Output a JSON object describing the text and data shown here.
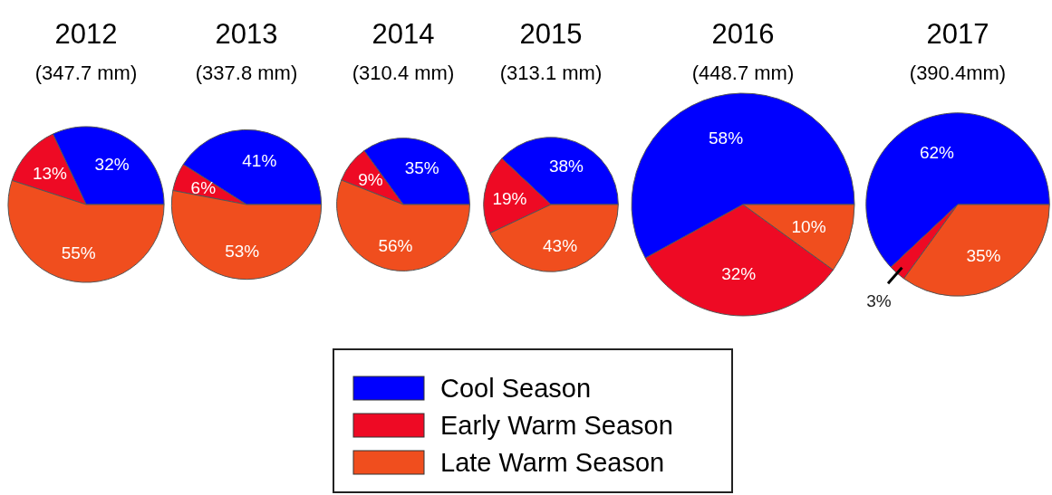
{
  "chart_data": [
    {
      "type": "pie",
      "title": "2012",
      "subtitle": "(347.7 mm)",
      "categories": [
        "Cool Season",
        "Early Warm Season",
        "Late Warm Season"
      ],
      "values": [
        32,
        13,
        55
      ],
      "value_labels": [
        "32%",
        "13%",
        "55%"
      ],
      "colors": [
        "#0000ff",
        "#ee0a24",
        "#f04e1e"
      ],
      "legend": "bottom"
    },
    {
      "type": "pie",
      "title": "2013",
      "subtitle": "(337.8 mm)",
      "categories": [
        null,
        null,
        null
      ],
      "values": [
        41,
        6,
        53
      ],
      "value_labels": [
        "41%",
        "6%",
        "53%"
      ],
      "colors": [
        "#0000ff",
        "#ee0a24",
        "#f04e1e"
      ]
    },
    {
      "type": "pie",
      "title": "2014",
      "subtitle": "(310.4 mm)",
      "categories": [
        null,
        null,
        null
      ],
      "values": [
        35,
        9,
        56
      ],
      "value_labels": [
        "35%",
        "9%",
        "56%"
      ],
      "colors": [
        "#0000ff",
        "#ee0a24",
        "#f04e1e"
      ]
    },
    {
      "type": "pie",
      "title": "2015",
      "subtitle": "(313.1 mm)",
      "categories": [
        null,
        null,
        null
      ],
      "values": [
        38,
        19,
        43
      ],
      "value_labels": [
        "38%",
        "19%",
        "43%"
      ],
      "colors": [
        "#0000ff",
        "#ee0a24",
        "#f04e1e"
      ]
    },
    {
      "type": "pie",
      "title": "2016",
      "subtitle": "(448.7 mm)",
      "categories": [
        null,
        null,
        null
      ],
      "values": [
        58,
        32,
        10
      ],
      "value_labels": [
        "58%",
        "32%",
        "10%"
      ],
      "colors": [
        "#0000ff",
        "#ee0a24",
        "#f04e1e"
      ]
    },
    {
      "type": "pie",
      "title": "2017",
      "subtitle": "(390.4mm)",
      "categories": [
        null,
        null,
        null
      ],
      "values": [
        62,
        3,
        35
      ],
      "value_labels": [
        "62%",
        "3%",
        "35%"
      ],
      "colors": [
        "#0000ff",
        "#ee0a24",
        "#f04e1e"
      ]
    }
  ]
}
